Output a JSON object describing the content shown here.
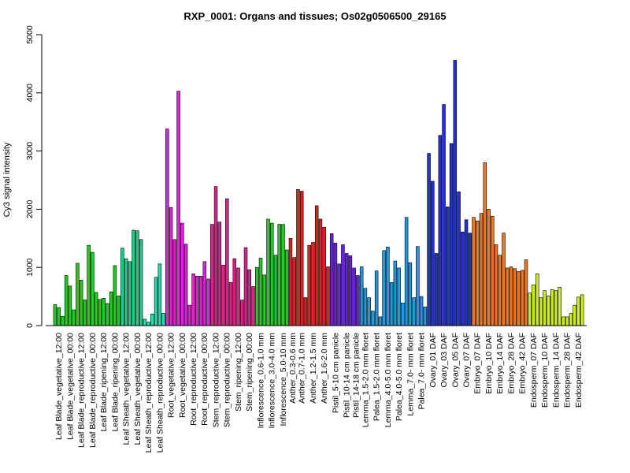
{
  "chart_data": {
    "type": "bar",
    "title": "RXP_0001: Organs and tissues; Os02g0506500_29165",
    "xlabel": "",
    "ylabel": "Cy3 signal intensity",
    "ylim": [
      0,
      5000
    ],
    "yticks": [
      0,
      1000,
      2000,
      3000,
      4000,
      5000
    ],
    "grid": false,
    "groups": [
      {
        "label": "Leaf Blade_vegetative_12:00",
        "color": "#22cc22",
        "values": [
          360,
          310,
          160
        ]
      },
      {
        "label": "Leaf Blade_vegetative_00:00",
        "color": "#22cc22",
        "values": [
          860,
          680,
          270
        ]
      },
      {
        "label": "Leaf Blade_reproductive_12:00",
        "color": "#22cc22",
        "values": [
          1070,
          780,
          440
        ]
      },
      {
        "label": "Leaf Blade_reproductive_00:00",
        "color": "#22cc22",
        "values": [
          1380,
          1260,
          570
        ]
      },
      {
        "label": "Leaf Blade_ripening_12:00",
        "color": "#22cc22",
        "values": [
          450,
          470,
          380
        ]
      },
      {
        "label": "Leaf Blade_ripening_00:00",
        "color": "#22cc22",
        "values": [
          580,
          1030,
          510
        ]
      },
      {
        "label": "Leaf Sheath_vegetative_12:00",
        "color": "#22cc88",
        "values": [
          1330,
          1150,
          1100
        ]
      },
      {
        "label": "Leaf Sheath_vegetative_00:00",
        "color": "#22cc88",
        "values": [
          1640,
          1630,
          1480
        ]
      },
      {
        "label": "Leaf Sheath_reproductive_12:00",
        "color": "#22ddaa",
        "values": [
          110,
          60,
          200
        ]
      },
      {
        "label": "Leaf Sheath_reproductive_00:00",
        "color": "#22ddaa",
        "values": [
          830,
          1060,
          210
        ]
      },
      {
        "label": "Root_vegetative_12:00",
        "color": "#dd22dd",
        "values": [
          3380,
          2030,
          1480
        ]
      },
      {
        "label": "Root_vegetative_00:00",
        "color": "#dd22dd",
        "values": [
          4030,
          1760,
          1400
        ]
      },
      {
        "label": "Root_reproductive_12:00",
        "color": "#dd22dd",
        "values": [
          350,
          890,
          850
        ]
      },
      {
        "label": "Root_reproductive_00:00",
        "color": "#dd22dd",
        "values": [
          850,
          1100,
          800
        ]
      },
      {
        "label": "Stem_reproductive_12:00",
        "color": "#dd2288",
        "values": [
          1740,
          2390,
          1780
        ]
      },
      {
        "label": "Stem_reproductive_00:00",
        "color": "#dd2288",
        "values": [
          1040,
          2180,
          740
        ]
      },
      {
        "label": "Stem_ripening_12:00",
        "color": "#dd2288",
        "values": [
          1150,
          990,
          440
        ]
      },
      {
        "label": "Stem_ripening_00:00",
        "color": "#dd2288",
        "values": [
          1340,
          960,
          670
        ]
      },
      {
        "label": "Inflorescence_0.6-1.0 mm",
        "color": "#22cc22",
        "values": [
          1000,
          1160,
          870
        ]
      },
      {
        "label": "Inflorescence_3.0-4.0 mm",
        "color": "#22cc22",
        "values": [
          1830,
          1760,
          1210
        ]
      },
      {
        "label": "Inflorescence_5.0-10 mm",
        "color": "#22cc22",
        "values": [
          1740,
          1740,
          1300
        ]
      },
      {
        "label": "Anther_0.3-0.6 mm",
        "color": "#dd2222",
        "values": [
          1500,
          1170
        ]
      },
      {
        "label": "Anther_0.7-1.0 mm",
        "color": "#dd2222",
        "values": [
          2340,
          2310,
          480
        ]
      },
      {
        "label": "Anther_1.2-1.5 mm",
        "color": "#dd2222",
        "values": [
          1380,
          1430,
          2060
        ]
      },
      {
        "label": "Anther_1.6-2.0 mm",
        "color": "#dd2222",
        "values": [
          1830,
          1690,
          1010
        ]
      },
      {
        "label": "Pistil_5-10 cm panicle",
        "color": "#6622dd",
        "values": [
          1580,
          1420,
          1060
        ]
      },
      {
        "label": "Pistil_10-14 cm panicle",
        "color": "#6622dd",
        "values": [
          1390,
          1240,
          1200
        ]
      },
      {
        "label": "Pistil_14-18 cm panicle",
        "color": "#6622dd",
        "values": [
          990,
          860
        ]
      },
      {
        "label": "Lemma_1.5-2.0 mm floret",
        "color": "#2299dd",
        "values": [
          1010,
          640,
          480
        ]
      },
      {
        "label": "Palea_1.5-2.0 mm floret",
        "color": "#2299dd",
        "values": [
          250,
          940,
          150
        ]
      },
      {
        "label": "Lemma_4.0-5.0 mm floret",
        "color": "#2299dd",
        "values": [
          1290,
          1350,
          740
        ]
      },
      {
        "label": "Palea_4.0-5.0 mm floret",
        "color": "#2299dd",
        "values": [
          1110,
          990,
          390
        ]
      },
      {
        "label": "Lemma_7.0- mm floret",
        "color": "#2299dd",
        "values": [
          1860,
          1080,
          480
        ]
      },
      {
        "label": "Palea_7.0- mm floret",
        "color": "#2299dd",
        "values": [
          1360,
          500,
          320
        ]
      },
      {
        "label": "Ovary_01 DAF",
        "color": "#2233cc",
        "values": [
          2960,
          2480,
          1240
        ]
      },
      {
        "label": "Ovary_03 DAF",
        "color": "#2233cc",
        "values": [
          3270,
          3800,
          2040
        ]
      },
      {
        "label": "Ovary_05 DAF",
        "color": "#2233cc",
        "values": [
          3130,
          4560,
          2300
        ]
      },
      {
        "label": "Ovary_07 DAF",
        "color": "#2233cc",
        "values": [
          1610,
          1820,
          1590
        ]
      },
      {
        "label": "Embryo_07 DAF",
        "color": "#ee7722",
        "values": [
          1860,
          1800,
          1930
        ]
      },
      {
        "label": "Embryo_10 DAF",
        "color": "#ee7722",
        "values": [
          2800,
          2000,
          1880
        ]
      },
      {
        "label": "Embryo_14 DAF",
        "color": "#ee7722",
        "values": [
          1390,
          1210,
          1590
        ]
      },
      {
        "label": "Embryo_28 DAF",
        "color": "#ee7722",
        "values": [
          990,
          1010,
          980
        ]
      },
      {
        "label": "Embryo_42 DAF",
        "color": "#ee7722",
        "values": [
          930,
          950,
          1130
        ]
      },
      {
        "label": "Endosperm_07 DAF",
        "color": "#ccee22",
        "values": [
          560,
          700,
          890
        ]
      },
      {
        "label": "Endosperm_10 DAF",
        "color": "#ccee22",
        "values": [
          480,
          600,
          510
        ]
      },
      {
        "label": "Endosperm_14 DAF",
        "color": "#ccee22",
        "values": [
          620,
          600,
          660
        ]
      },
      {
        "label": "Endosperm_28 DAF",
        "color": "#ccee22",
        "values": [
          150,
          150,
          210
        ]
      },
      {
        "label": "Endosperm_42 DAF",
        "color": "#ccee22",
        "values": [
          350,
          490,
          530
        ]
      }
    ]
  }
}
